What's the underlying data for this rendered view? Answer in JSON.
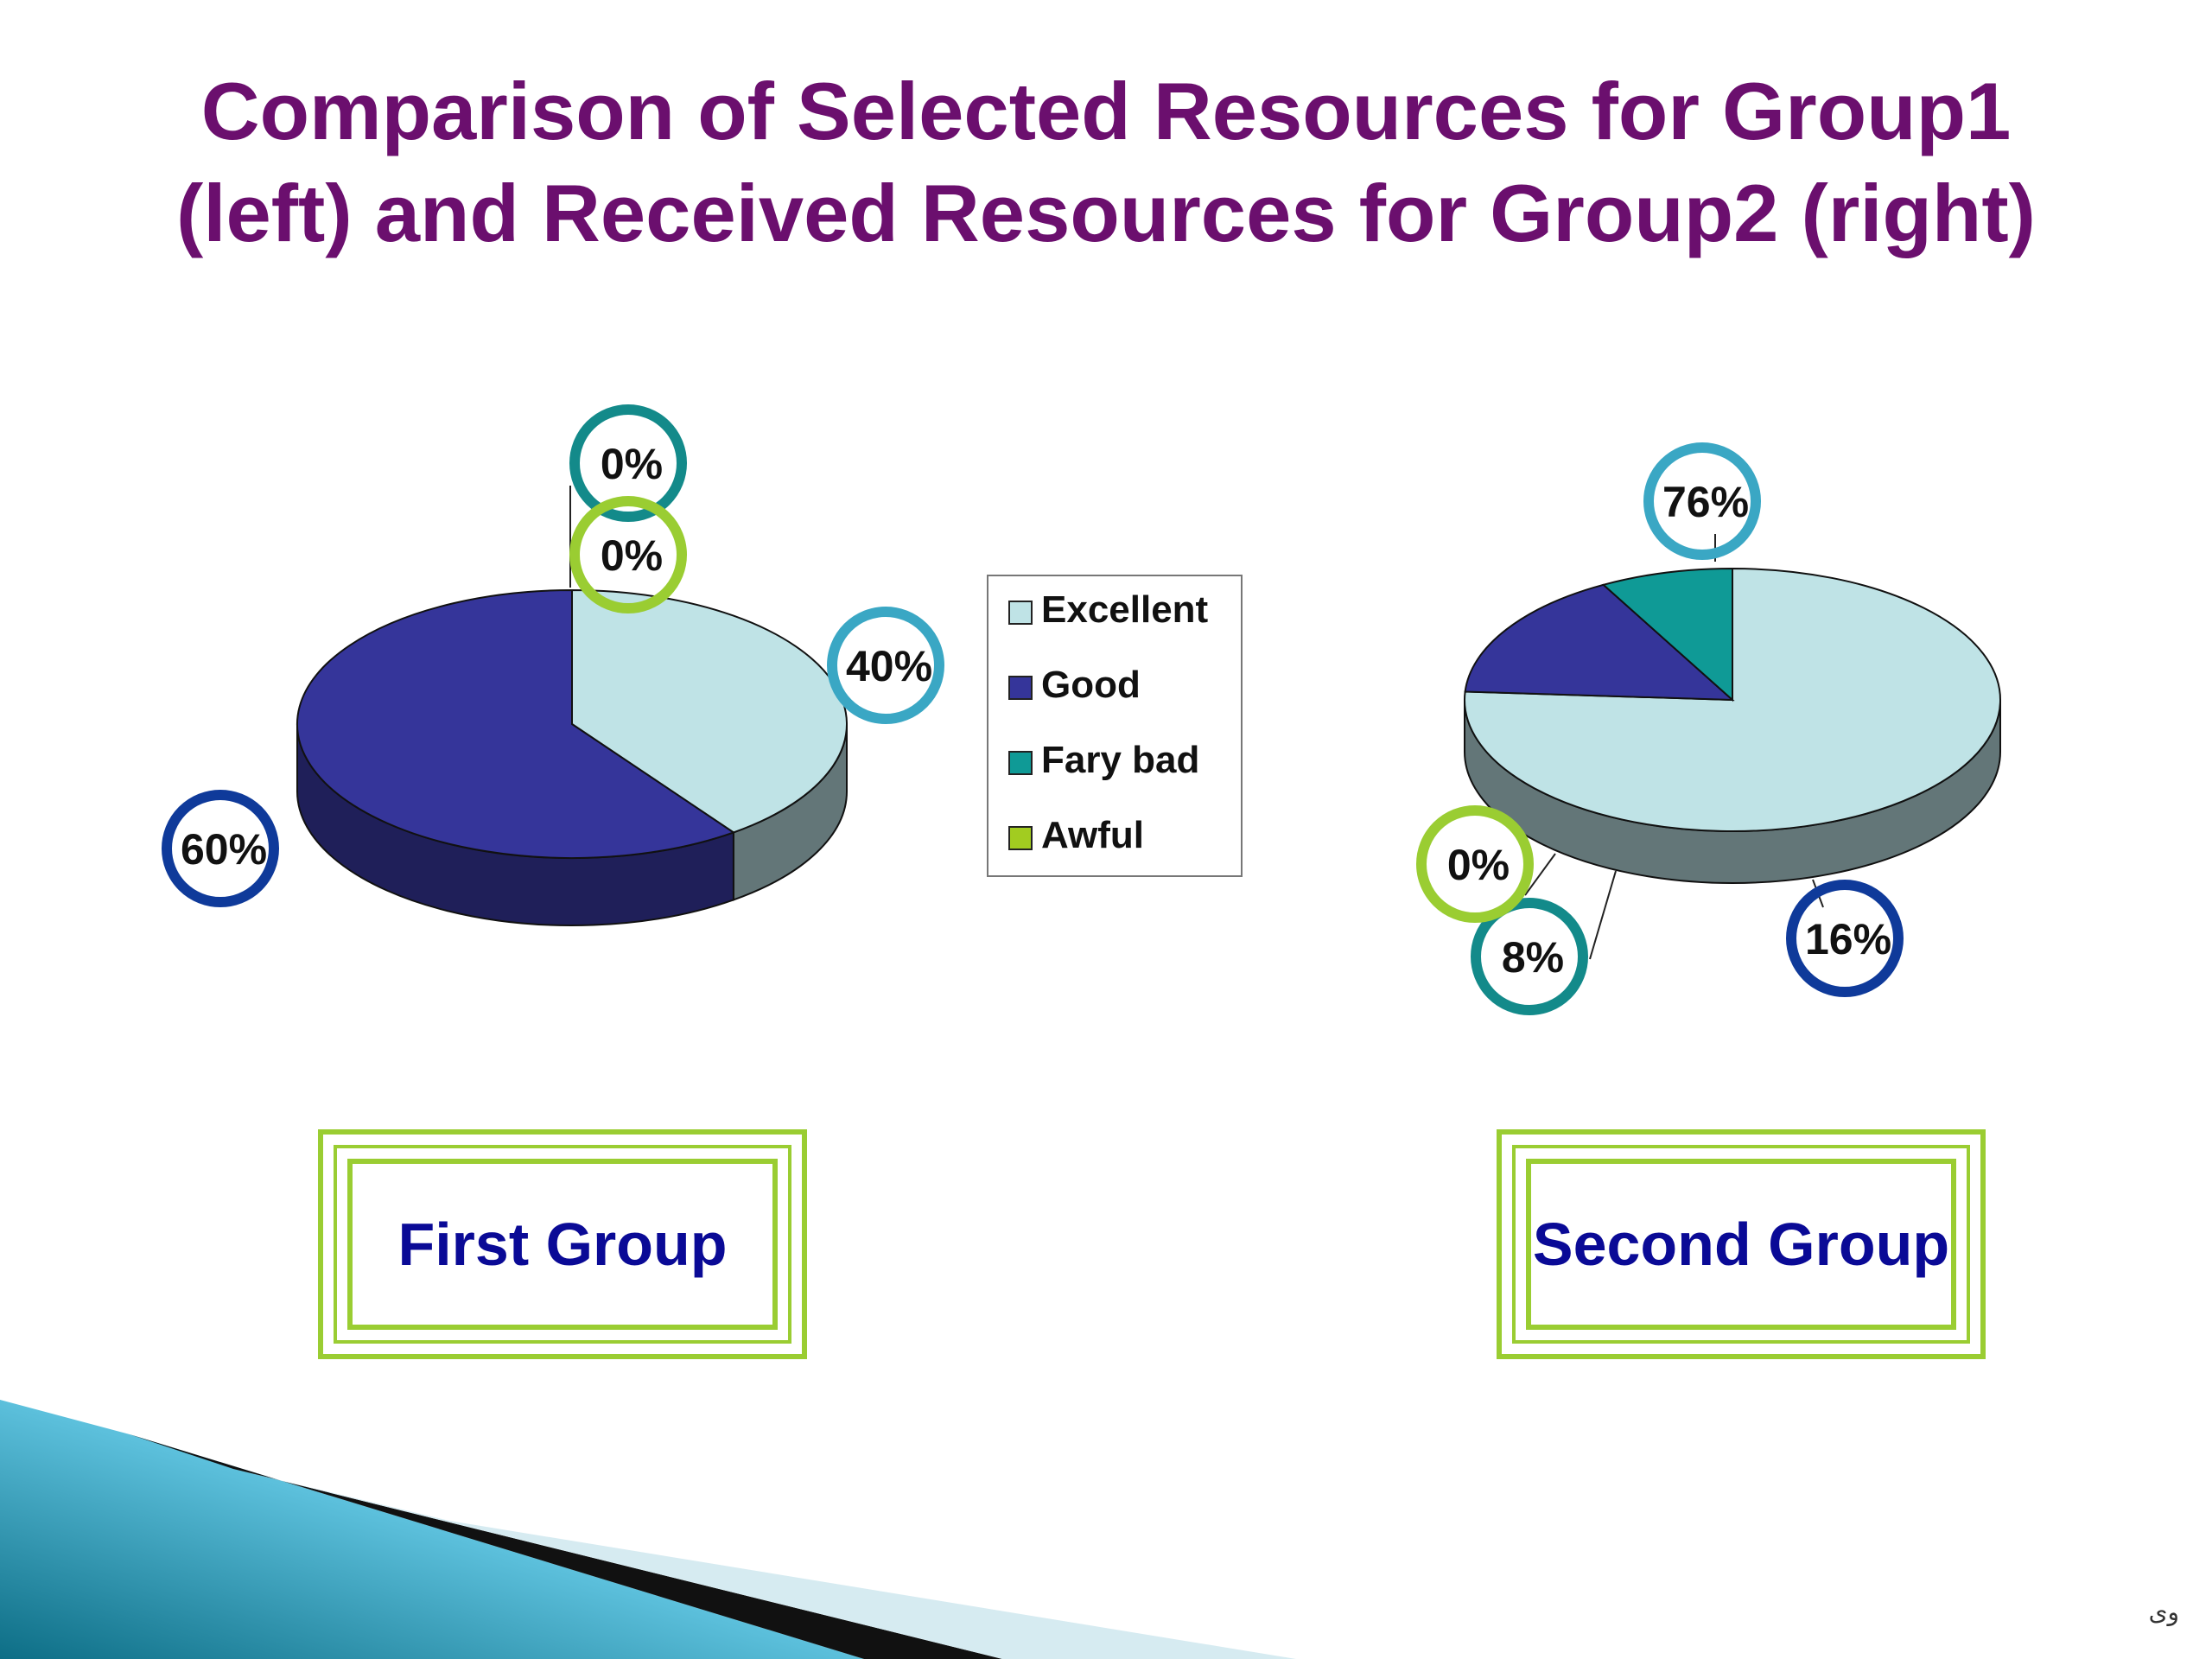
{
  "slide": {
    "title_line1": "Comparison of Selected Resources for Group1",
    "title_line2": "(left) and Received Resources for Group2 (right)",
    "footer_mark": "وی"
  },
  "legend": {
    "items": [
      {
        "label": "Excellent",
        "color": "#bfe3e6"
      },
      {
        "label": "Good",
        "color": "#35359a"
      },
      {
        "label": "Fary bad",
        "color": "#0f9a96"
      },
      {
        "label": "Awful",
        "color": "#a2cc20"
      }
    ]
  },
  "chart_data": [
    {
      "type": "pie",
      "style": "3d",
      "categories": [
        "Excellent",
        "Good",
        "Fary bad",
        "Awful"
      ],
      "values": [
        40,
        60,
        0,
        0
      ],
      "data_labels": [
        "40%",
        "60%",
        "0%",
        "0%"
      ],
      "caption": "First Group"
    },
    {
      "type": "pie",
      "style": "3d",
      "categories": [
        "Excellent",
        "Good",
        "Fary bad",
        "Awful"
      ],
      "values": [
        76,
        16,
        8,
        0
      ],
      "data_labels": [
        "76%",
        "16%",
        "8%",
        "0%"
      ],
      "caption": "Second Group"
    }
  ],
  "colors": {
    "title": "#6b0f6e",
    "caption_text": "#0a0a96",
    "frame_green": "#9acd32",
    "ring_excellent": "#3aa7c4",
    "ring_good": "#0f3a9a",
    "ring_fary_bad": "#138a8a",
    "ring_awful": "#9acd32"
  }
}
